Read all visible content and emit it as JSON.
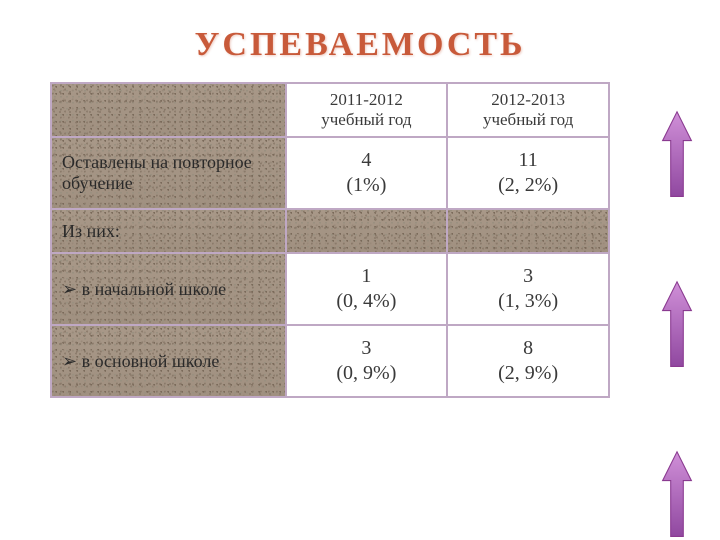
{
  "title": "УСПЕВАЕМОСТЬ",
  "table": {
    "columns": [
      "2011-2012 учебный год",
      "2012-2013 учебный год"
    ],
    "rows": [
      {
        "label": "Оставлены на повторное обучение",
        "cells": [
          "4\n(1%)",
          "11\n(2, 2%)"
        ]
      },
      {
        "label": "Из них:",
        "cells": [
          "",
          ""
        ]
      },
      {
        "label": "➢ в начальной школе",
        "cells": [
          "1\n(0, 4%)",
          "3\n(1, 3%)"
        ]
      },
      {
        "label": "➢ в основной школе",
        "cells": [
          "3\n(0, 9%)",
          "8\n(2, 9%)"
        ]
      }
    ],
    "border_color": "#bfa8c4",
    "cell_bg": "#ffffff",
    "texture_base": "#a89888",
    "text_color": "#2a2a2a",
    "header_fontsize": 17,
    "data_fontsize": 20,
    "label_fontsize": 18
  },
  "arrows": {
    "count": 3,
    "fill": "linear-gradient(#c678c8, #a050a8)",
    "stroke": "#8a3a90",
    "colors": {
      "top": "#d090d8",
      "bottom": "#9048a0"
    }
  },
  "title_color": "#c85a3a",
  "title_fontsize": 34,
  "background_color": "#ffffff"
}
